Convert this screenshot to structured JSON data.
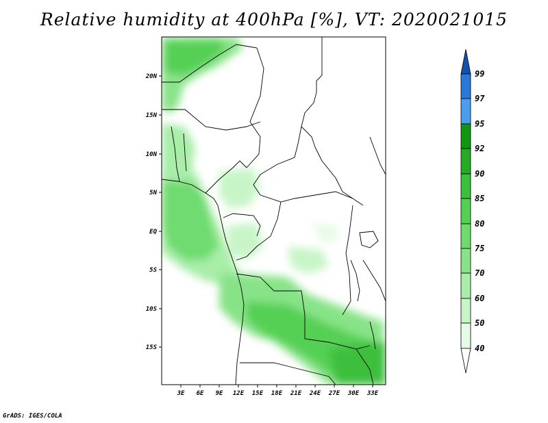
{
  "title": "Relative humidity at 400hPa [%], VT: 2020021015",
  "credit": "GrADS: IGES/COLA",
  "map": {
    "lon_ticks": [
      "3E",
      "6E",
      "9E",
      "12E",
      "15E",
      "18E",
      "21E",
      "24E",
      "27E",
      "30E",
      "33E"
    ],
    "lat_ticks": [
      "20N",
      "15N",
      "10N",
      "5N",
      "EQ",
      "5S",
      "10S",
      "15S"
    ]
  },
  "colorbar": {
    "levels": [
      "40",
      "50",
      "60",
      "70",
      "75",
      "80",
      "85",
      "90",
      "92",
      "95",
      "97",
      "99"
    ],
    "colors": {
      "c40_50": "#e6fbe6",
      "c50_60": "#c8f5c8",
      "c60_70": "#a8eda8",
      "c70_75": "#88e388",
      "c75_80": "#6fdb6f",
      "c80_85": "#55d055",
      "c85_90": "#3cbf3c",
      "c90_92": "#25aa25",
      "c92_95": "#119611",
      "c95_97": "#4a9eea",
      "c97_99": "#2a78d8",
      "c99_up": "#1450b0",
      "below": "#ffffff"
    }
  }
}
